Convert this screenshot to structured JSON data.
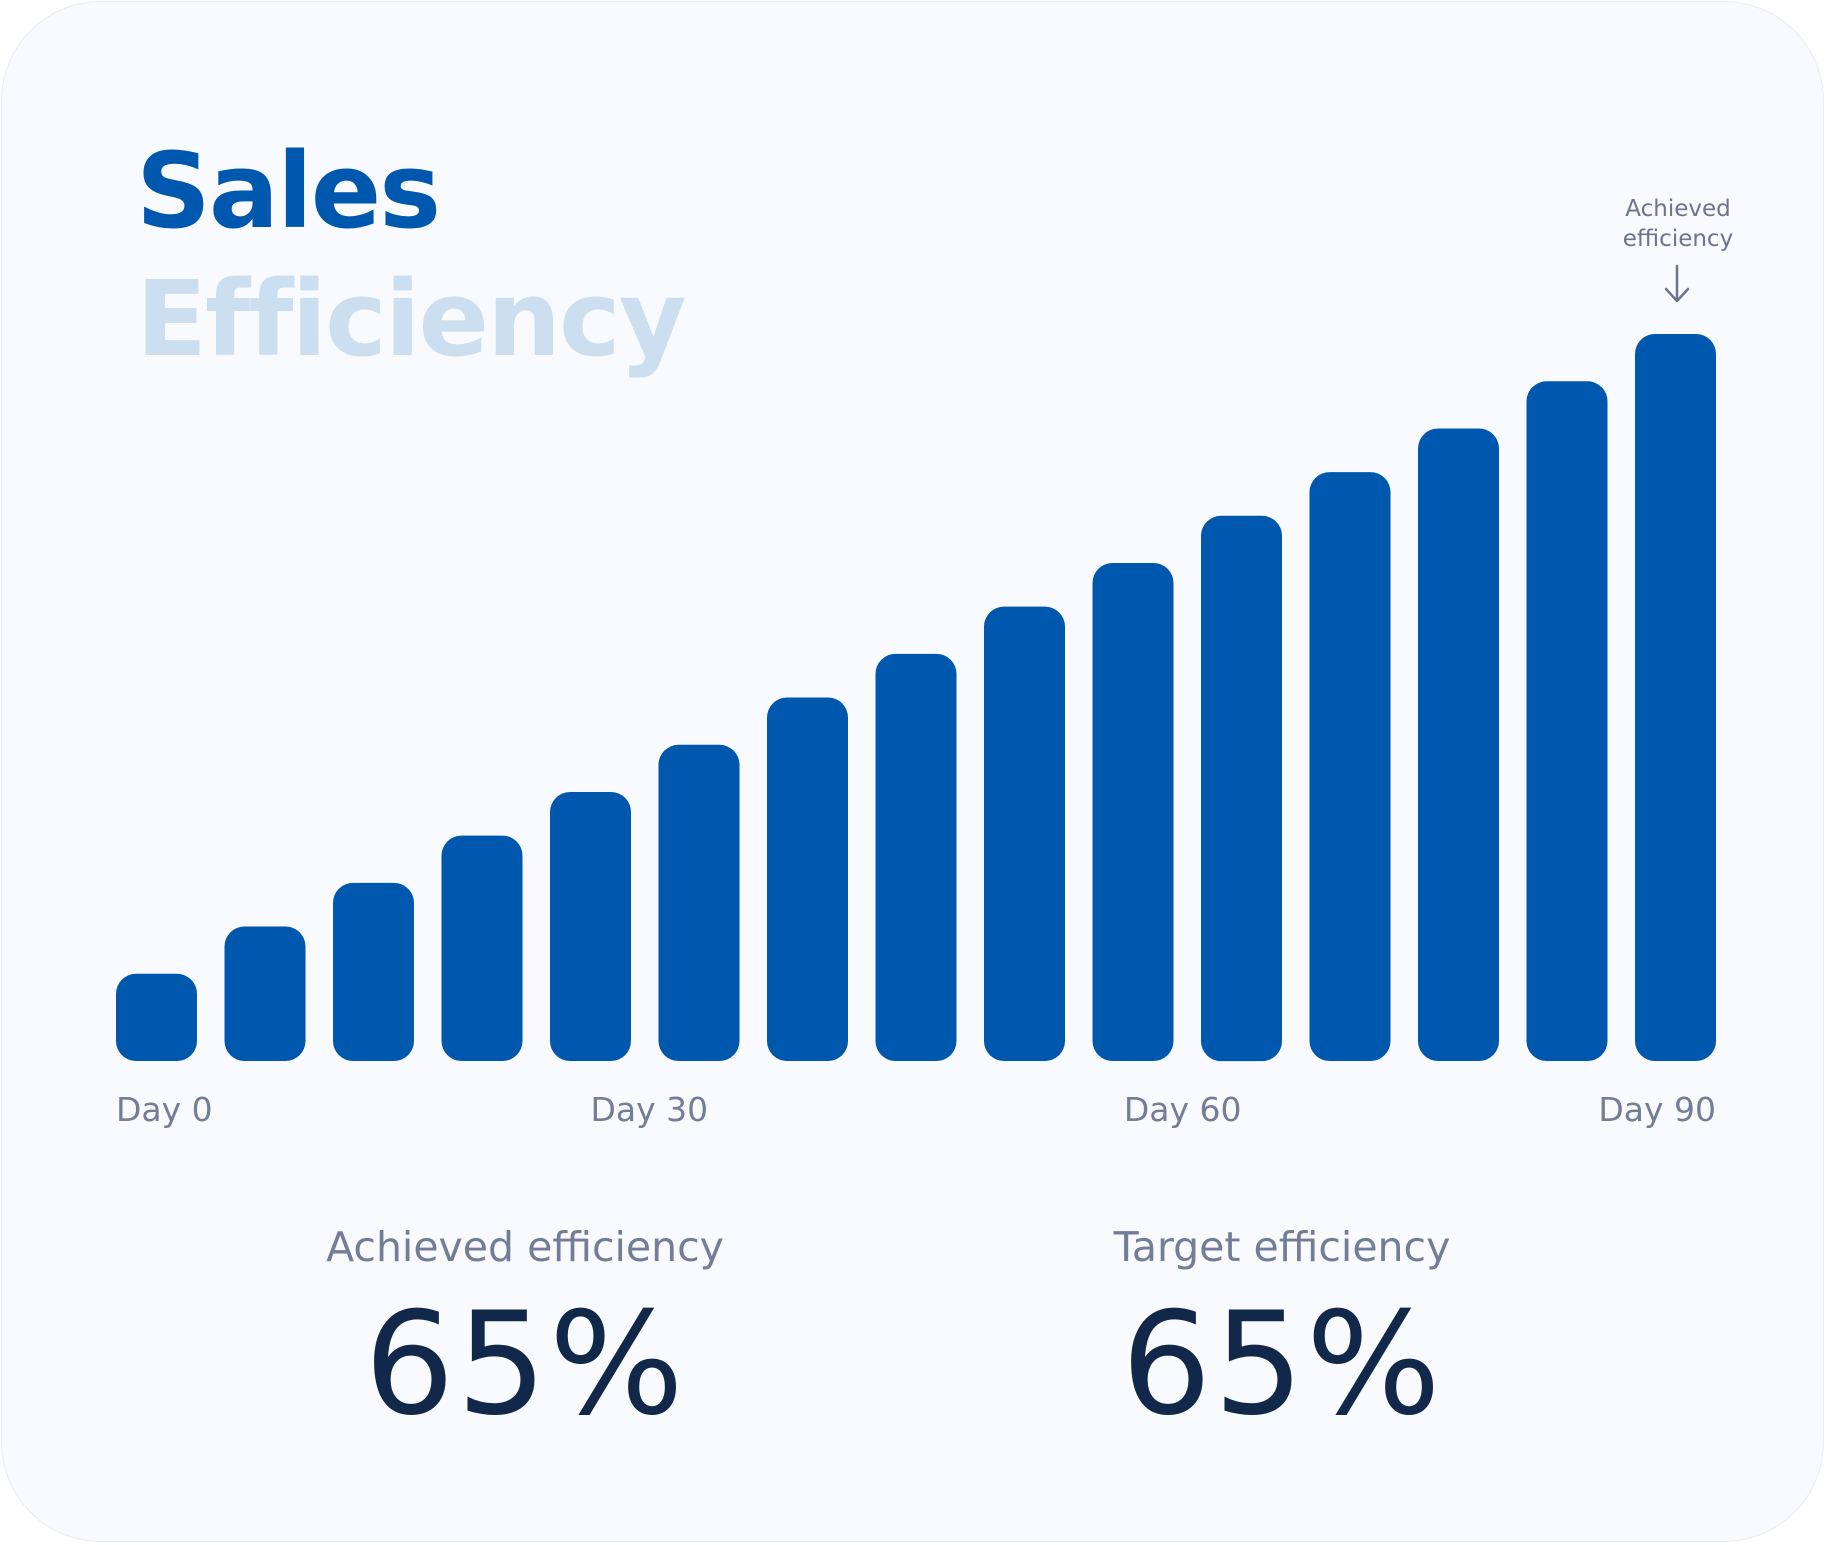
{
  "title": {
    "line1": "Sales",
    "line2": "Efficiency"
  },
  "annotation": {
    "text_line1": "Achieved",
    "text_line2": "efficiency",
    "icon": "arrow-down-icon"
  },
  "colors": {
    "bar": "#0057ae",
    "title_primary": "#0057ae",
    "title_secondary": "#ccdff0",
    "label": "#737d98",
    "value": "#11284a",
    "card_background": "#f8fafd"
  },
  "chart_data": {
    "type": "bar",
    "categories": [
      "Day 0",
      "",
      "",
      "Day 30",
      "",
      "",
      "",
      "",
      "Day 60",
      "",
      "",
      "",
      "",
      "",
      "Day 90"
    ],
    "x_tick_labels": [
      "Day 0",
      "Day 30",
      "Day 60",
      "Day 90"
    ],
    "values": [
      12,
      18.5,
      24.5,
      31,
      37,
      43.5,
      50,
      56,
      62.5,
      68.5,
      75,
      81,
      87,
      93.5,
      100
    ],
    "title": "",
    "xlabel": "",
    "ylabel": "",
    "ylim": [
      0,
      100
    ],
    "grid": false,
    "legend": "none"
  },
  "stats": [
    {
      "label": "Achieved efficiency",
      "value": "65%"
    },
    {
      "label": "Target efficiency",
      "value": "65%"
    }
  ]
}
